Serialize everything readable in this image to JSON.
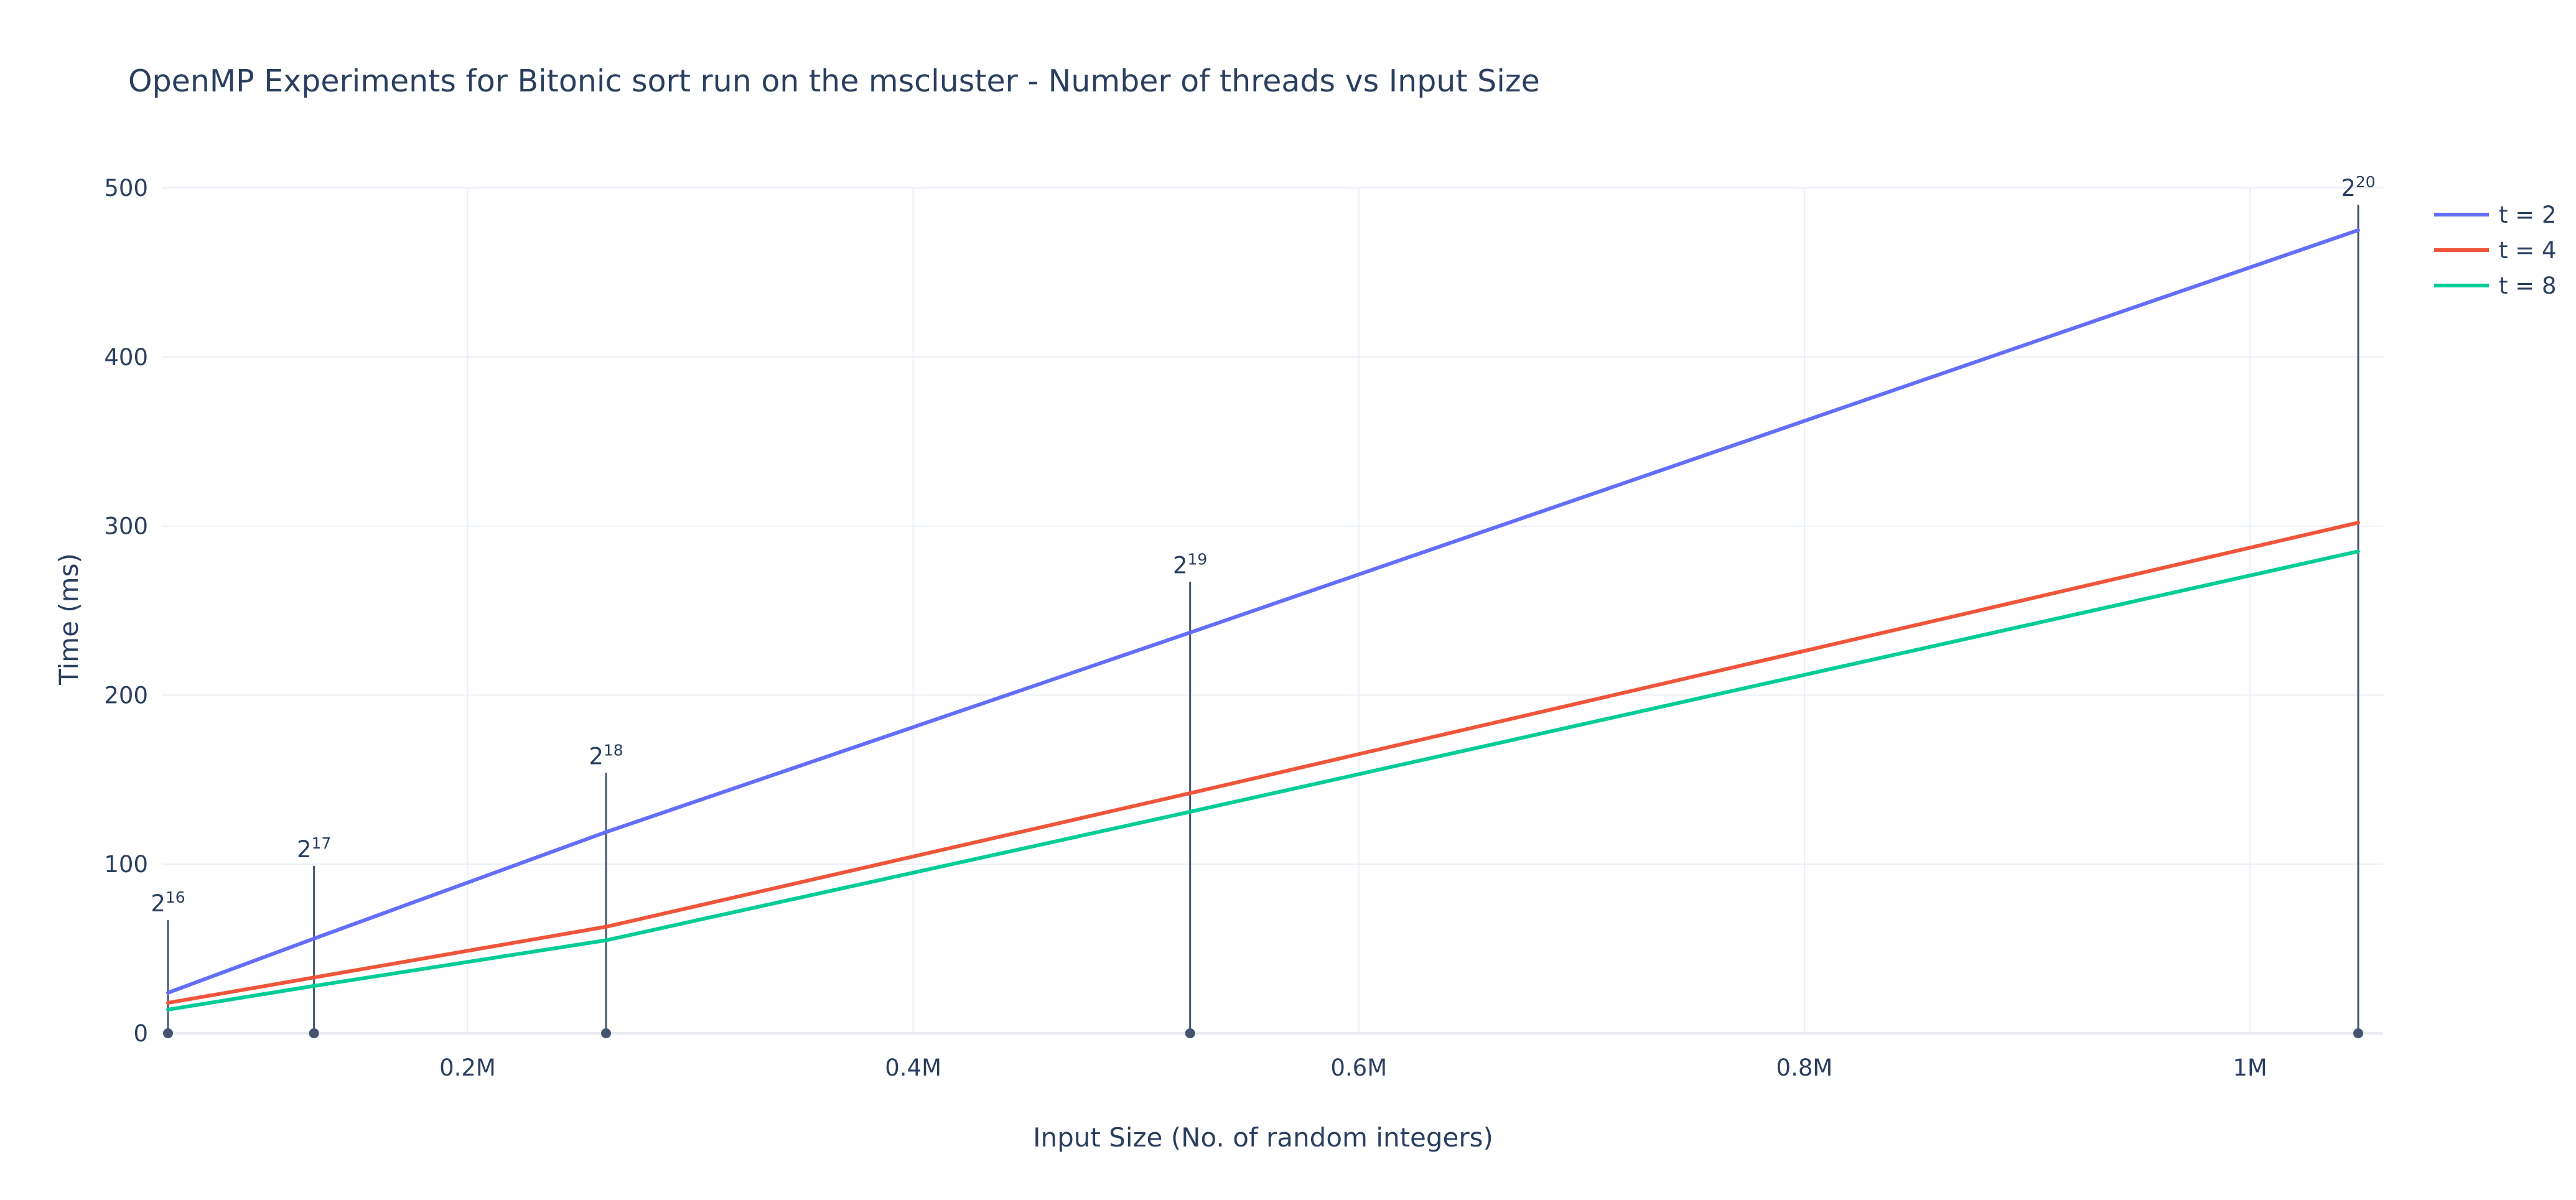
{
  "chart_data": {
    "type": "line",
    "title": "OpenMP Experiments for Bitonic sort run on the mscluster - Number of threads vs Input Size",
    "xlabel": "Input Size (No. of random integers)",
    "ylabel": "Time (ms)",
    "xlim": [
      65536,
      1048576
    ],
    "ylim": [
      0,
      500
    ],
    "x_tick_values": [
      200000,
      400000,
      600000,
      800000,
      1000000
    ],
    "x_tick_labels": [
      "0.2M",
      "0.4M",
      "0.6M",
      "0.8M",
      "1M"
    ],
    "y_tick_values": [
      0,
      100,
      200,
      300,
      400,
      500
    ],
    "y_tick_labels": [
      "0",
      "100",
      "200",
      "300",
      "400",
      "500"
    ],
    "grid": true,
    "legend_position": "top-right",
    "x": [
      65536,
      131072,
      262144,
      524288,
      1048576
    ],
    "series": [
      {
        "name": "t = 2",
        "color": "#636efa",
        "values": [
          24,
          56,
          119,
          237,
          475
        ]
      },
      {
        "name": "t = 4",
        "color": "#ef553b",
        "values": [
          18,
          33,
          63,
          142,
          302
        ]
      },
      {
        "name": "t = 8",
        "color": "#00cc96",
        "values": [
          14,
          28,
          55,
          131,
          285
        ]
      }
    ],
    "annotations": [
      {
        "x": 65536,
        "base": "2",
        "exponent": "16",
        "y": 67
      },
      {
        "x": 131072,
        "base": "2",
        "exponent": "17",
        "y": 99
      },
      {
        "x": 262144,
        "base": "2",
        "exponent": "18",
        "y": 154
      },
      {
        "x": 524288,
        "base": "2",
        "exponent": "19",
        "y": 267
      },
      {
        "x": 1048576,
        "base": "2",
        "exponent": "20",
        "y": 490
      }
    ],
    "annotation_color": "#44546f"
  }
}
